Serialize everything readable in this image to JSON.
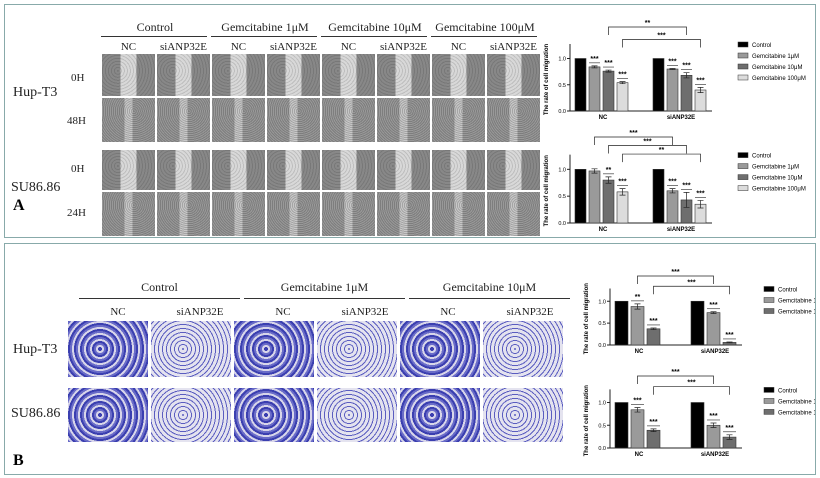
{
  "panel_a": {
    "label": "A",
    "headers": [
      "Control",
      "Gemcitabine 1μM",
      "Gemcitabine 10μM",
      "Gemcitabine 100μM"
    ],
    "subheaders": [
      "NC",
      "siANP32E",
      "NC",
      "siANP32E",
      "NC",
      "siANP32E",
      "NC",
      "siANP32E"
    ],
    "cell_lines": [
      "Hup-T3",
      "SU86.86"
    ],
    "times": [
      "0H",
      "48H",
      "0H",
      "24H"
    ]
  },
  "panel_b": {
    "label": "B",
    "headers": [
      "Control",
      "Gemcitabine 1μM",
      "Gemcitabine 10μM"
    ],
    "subheaders": [
      "NC",
      "siANP32E",
      "NC",
      "siANP32E",
      "NC",
      "siANP32E"
    ],
    "cell_lines": [
      "Hup-T3",
      "SU86.86"
    ]
  },
  "colors": {
    "Control": "#000000",
    "Gemcitabine 1μM": "#9a9a9a",
    "Gemcitabine 10μM": "#6e6e6e",
    "Gemcitabine 100μM": "#dcdcdc"
  },
  "chart_data": [
    {
      "type": "bar",
      "ylabel": "The rate of cell migration",
      "categories": [
        "NC",
        "siANP32E"
      ],
      "ylim": [
        0,
        1.2
      ],
      "yticks": [
        "0.0",
        "0.5",
        "1.0"
      ],
      "legend": "right",
      "series": [
        {
          "name": "Control",
          "values": [
            1.0,
            1.0
          ],
          "errors": [
            0,
            0
          ],
          "sig": [
            "",
            ""
          ]
        },
        {
          "name": "Gemcitabine 1μM",
          "values": [
            0.84,
            0.8
          ],
          "errors": [
            0.02,
            0.01
          ],
          "sig": [
            "***",
            "***"
          ]
        },
        {
          "name": "Gemcitabine 10μM",
          "values": [
            0.76,
            0.68
          ],
          "errors": [
            0.02,
            0.05
          ],
          "sig": [
            "***",
            "***"
          ]
        },
        {
          "name": "Gemcitabine 100μM",
          "values": [
            0.54,
            0.4
          ],
          "errors": [
            0.02,
            0.05
          ],
          "sig": [
            "***",
            "***"
          ]
        }
      ],
      "comparisons": [
        {
          "series": 2,
          "label": "**"
        },
        {
          "series": 3,
          "label": "***"
        }
      ]
    },
    {
      "type": "bar",
      "ylabel": "The rate of cell migration",
      "categories": [
        "NC",
        "siANP32E"
      ],
      "ylim": [
        0,
        1.2
      ],
      "yticks": [
        "0.0",
        "0.5",
        "1.0"
      ],
      "legend": "right",
      "series": [
        {
          "name": "Control",
          "values": [
            1.0,
            1.0
          ],
          "errors": [
            0,
            0
          ],
          "sig": [
            "",
            ""
          ]
        },
        {
          "name": "Gemcitabine 1μM",
          "values": [
            0.97,
            0.6
          ],
          "errors": [
            0.04,
            0.04
          ],
          "sig": [
            "",
            "***"
          ]
        },
        {
          "name": "Gemcitabine 10μM",
          "values": [
            0.8,
            0.43
          ],
          "errors": [
            0.06,
            0.14
          ],
          "sig": [
            "**",
            "***"
          ]
        },
        {
          "name": "Gemcitabine 100μM",
          "values": [
            0.58,
            0.35
          ],
          "errors": [
            0.06,
            0.07
          ],
          "sig": [
            "***",
            "***"
          ]
        }
      ],
      "comparisons": [
        {
          "series": 1,
          "label": "***"
        },
        {
          "series": 2,
          "label": "***"
        },
        {
          "series": 3,
          "label": "**"
        }
      ]
    },
    {
      "type": "bar",
      "ylabel": "The rate of cell migration",
      "categories": [
        "NC",
        "siANP32E"
      ],
      "ylim": [
        0,
        1.2
      ],
      "yticks": [
        "0.0",
        "0.5",
        "1.0"
      ],
      "legend": "right",
      "series": [
        {
          "name": "Control",
          "values": [
            1.0,
            1.0
          ],
          "errors": [
            0,
            0
          ],
          "sig": [
            "",
            ""
          ]
        },
        {
          "name": "Gemcitabine 1μM",
          "values": [
            0.88,
            0.74
          ],
          "errors": [
            0.06,
            0.02
          ],
          "sig": [
            "**",
            "***"
          ]
        },
        {
          "name": "Gemcitabine 10μM",
          "values": [
            0.37,
            0.06
          ],
          "errors": [
            0.02,
            0.01
          ],
          "sig": [
            "***",
            "***"
          ]
        }
      ],
      "comparisons": [
        {
          "series": 1,
          "label": "***"
        },
        {
          "series": 2,
          "label": "***"
        }
      ]
    },
    {
      "type": "bar",
      "ylabel": "The rate of cell migration",
      "categories": [
        "NC",
        "siANP32E"
      ],
      "ylim": [
        0,
        1.2
      ],
      "yticks": [
        "0.0",
        "0.5",
        "1.0"
      ],
      "legend": "right",
      "series": [
        {
          "name": "Control",
          "values": [
            1.0,
            1.0
          ],
          "errors": [
            0,
            0
          ],
          "sig": [
            "",
            ""
          ]
        },
        {
          "name": "Gemcitabine 1μM",
          "values": [
            0.84,
            0.5
          ],
          "errors": [
            0.05,
            0.05
          ],
          "sig": [
            "***",
            "***"
          ]
        },
        {
          "name": "Gemcitabine 10μM",
          "values": [
            0.39,
            0.24
          ],
          "errors": [
            0.03,
            0.05
          ],
          "sig": [
            "***",
            "***"
          ]
        }
      ],
      "comparisons": [
        {
          "series": 1,
          "label": "***"
        },
        {
          "series": 2,
          "label": "***"
        }
      ]
    }
  ]
}
